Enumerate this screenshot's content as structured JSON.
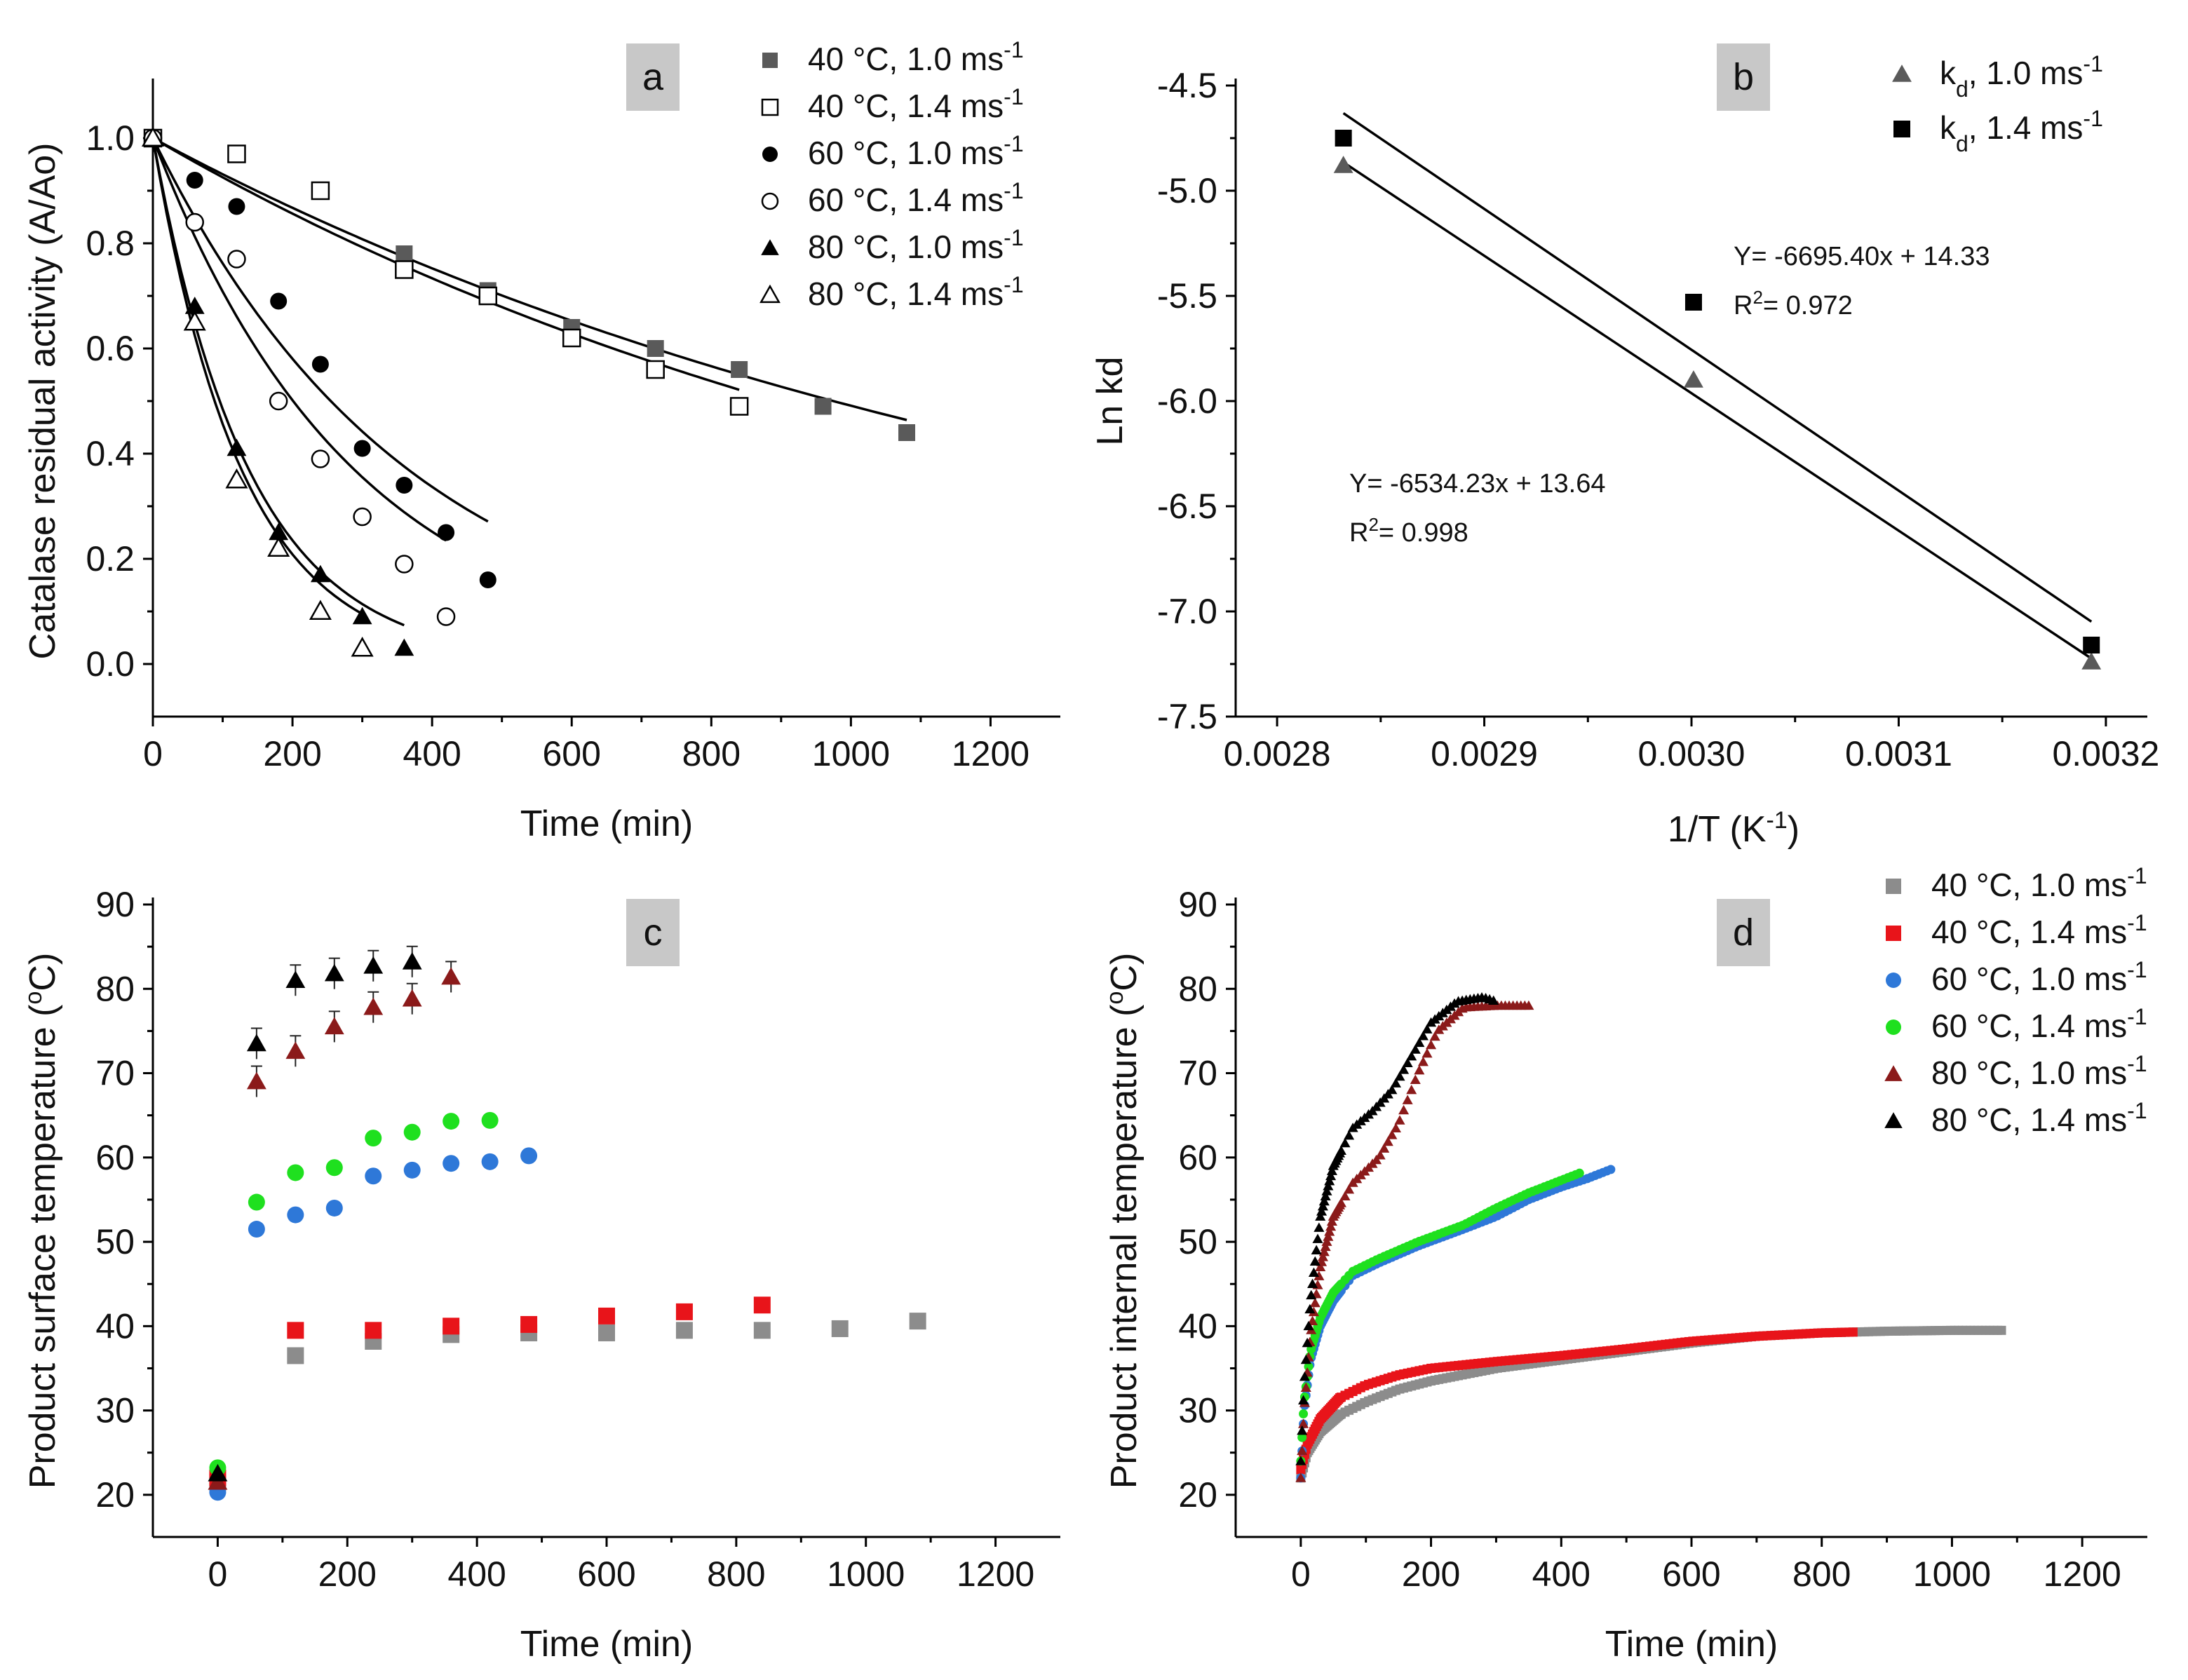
{
  "colors": {
    "gray_marker": "#5a5a5a",
    "gray_light": "#8c8c8c",
    "red": "#e8141a",
    "blue": "#2e78d8",
    "green": "#1fe01f",
    "dark_red": "#8b1a1a",
    "black": "#000000",
    "label_box": "#c8c8c8"
  },
  "chart_data": [
    {
      "panel": "a",
      "type": "scatter",
      "panel_label": "a",
      "xlabel": "Time (min)",
      "ylabel": "Catalase residual activity (A/Ao)",
      "xlim": [
        0,
        1300
      ],
      "ylim": [
        -0.1,
        1.1
      ],
      "xticks": [
        "0",
        "200",
        "400",
        "600",
        "800",
        "1000",
        "1200"
      ],
      "yticks": [
        "0.0",
        "0.2",
        "0.4",
        "0.6",
        "0.8",
        "1.0"
      ],
      "legend": {
        "position": "top-right",
        "entries": [
          {
            "label": "40 °C, 1.0 ms",
            "sup": "-1",
            "marker": "square-filled-gray"
          },
          {
            "label": "40 °C, 1.4 ms",
            "sup": "-1",
            "marker": "square-open"
          },
          {
            "label": "60 °C, 1.0 ms",
            "sup": "-1",
            "marker": "circle-filled"
          },
          {
            "label": "60 °C, 1.4 ms",
            "sup": "-1",
            "marker": "circle-open"
          },
          {
            "label": "80 °C, 1.0 ms",
            "sup": "-1",
            "marker": "triangle-filled"
          },
          {
            "label": "80 °C, 1.4 ms",
            "sup": "-1",
            "marker": "triangle-open"
          }
        ]
      },
      "series": [
        {
          "name": "40 °C, 1.0 ms-1",
          "marker": "square-filled-gray",
          "x": [
            0,
            360,
            480,
            600,
            720,
            840,
            960,
            1080
          ],
          "y": [
            1.0,
            0.78,
            0.71,
            0.64,
            0.6,
            0.56,
            0.49,
            0.44
          ]
        },
        {
          "name": "40 °C, 1.4 ms-1",
          "marker": "square-open",
          "x": [
            0,
            120,
            240,
            360,
            480,
            600,
            720,
            840
          ],
          "y": [
            1.0,
            0.97,
            0.9,
            0.75,
            0.7,
            0.62,
            0.56,
            0.49
          ]
        },
        {
          "name": "60 °C, 1.0 ms-1",
          "marker": "circle-filled",
          "x": [
            0,
            60,
            120,
            180,
            240,
            300,
            360,
            420,
            480
          ],
          "y": [
            1.0,
            0.92,
            0.87,
            0.69,
            0.57,
            0.41,
            0.34,
            0.25,
            0.16
          ]
        },
        {
          "name": "60 °C, 1.4 ms-1",
          "marker": "circle-open",
          "x": [
            0,
            60,
            120,
            180,
            240,
            300,
            360,
            420
          ],
          "y": [
            1.0,
            0.84,
            0.77,
            0.5,
            0.39,
            0.28,
            0.19,
            0.09
          ]
        },
        {
          "name": "80 °C, 1.0 ms-1",
          "marker": "triangle-filled",
          "x": [
            0,
            60,
            120,
            180,
            240,
            300,
            360
          ],
          "y": [
            1.0,
            0.68,
            0.41,
            0.25,
            0.17,
            0.09,
            0.03
          ]
        },
        {
          "name": "80 °C, 1.4 ms-1",
          "marker": "triangle-open",
          "x": [
            0,
            60,
            120,
            180,
            240,
            300
          ],
          "y": [
            1.0,
            0.65,
            0.35,
            0.22,
            0.1,
            0.03
          ]
        }
      ],
      "fits": [
        {
          "k": 0.000711,
          "xmax": 1080
        },
        {
          "k": 0.000775,
          "xmax": 840
        },
        {
          "k": 0.00272,
          "xmax": 480
        },
        {
          "k": 0.00345,
          "xmax": 420
        },
        {
          "k": 0.00724,
          "xmax": 360
        },
        {
          "k": 0.00784,
          "xmax": 300
        }
      ]
    },
    {
      "panel": "b",
      "type": "scatter",
      "panel_label": "b",
      "xlabel": "1/T (K",
      "xlabel_sup": "-1",
      "xlabel_end": ")",
      "ylabel": "Ln kd",
      "xlim": [
        0.00278,
        0.00322
      ],
      "ylim": [
        -7.5,
        -4.5
      ],
      "xticks": [
        "0.0028",
        "0.0029",
        "0.0030",
        "0.0031",
        "0.0032"
      ],
      "yticks": [
        "-4.5",
        "-5.0",
        "-5.5",
        "-6.0",
        "-6.5",
        "-7.0",
        "-7.5"
      ],
      "legend": {
        "position": "top-right",
        "entries": [
          {
            "label": "k",
            "sub": "d",
            "rest": ", 1.0 ms",
            "sup": "-1",
            "marker": "triangle-filled-gray"
          },
          {
            "label": "k",
            "sub": "d",
            "rest": ", 1.4 ms",
            "sup": "-1",
            "marker": "square-filled"
          }
        ]
      },
      "series": [
        {
          "name": "kd, 1.0 ms-1",
          "marker": "triangle-filled-gray",
          "x": [
            0.002832,
            0.003001,
            0.003193
          ],
          "y": [
            -4.88,
            -5.9,
            -7.24
          ]
        },
        {
          "name": "kd, 1.4 ms-1",
          "marker": "square-filled",
          "x": [
            0.002832,
            0.003001,
            0.003193
          ],
          "y": [
            -4.75,
            -5.53,
            -7.16
          ]
        }
      ],
      "fits": [
        {
          "slope": -6695.4,
          "intercept": 14.33,
          "x0": 0.002832,
          "x1": 0.003193
        },
        {
          "slope": -6534.23,
          "intercept": 13.64,
          "x0": 0.002832,
          "x1": 0.003193
        }
      ],
      "annotations": [
        {
          "eq": "Y= -6695.40x + 14.33",
          "r2_label": "R",
          "r2_sup": "2",
          "r2_value": "=  0.972"
        },
        {
          "eq": "Y= -6534.23x + 13.64",
          "r2_label": "R",
          "r2_sup": "2",
          "r2_value": "=  0.998"
        }
      ]
    },
    {
      "panel": "c",
      "type": "scatter",
      "panel_label": "c",
      "xlabel": "Time (min)",
      "ylabel": "Product surface temperature (",
      "ylabel_sup": "o",
      "ylabel_end": "C)",
      "xlim": [
        -100,
        1300
      ],
      "ylim": [
        15,
        90
      ],
      "xticks": [
        "0",
        "200",
        "400",
        "600",
        "800",
        "1000",
        "1200"
      ],
      "yticks": [
        "20",
        "30",
        "40",
        "50",
        "60",
        "70",
        "80",
        "90"
      ],
      "series": [
        {
          "name": "40 °C, 1.0 ms-1",
          "marker": "square",
          "color": "gray_light",
          "x": [
            0,
            120,
            240,
            360,
            480,
            600,
            720,
            840,
            960,
            1080
          ],
          "y": [
            21.5,
            36.5,
            38.2,
            39.0,
            39.2,
            39.2,
            39.5,
            39.5,
            39.7,
            40.6
          ]
        },
        {
          "name": "40 °C, 1.4 ms-1",
          "marker": "square",
          "color": "red",
          "x": [
            0,
            120,
            240,
            360,
            480,
            600,
            720,
            840
          ],
          "y": [
            22.0,
            39.5,
            39.5,
            40.0,
            40.2,
            41.2,
            41.7,
            42.5
          ]
        },
        {
          "name": "60 °C, 1.0 ms-1",
          "marker": "circle",
          "color": "blue",
          "x": [
            0,
            60,
            120,
            180,
            240,
            300,
            360,
            420,
            480
          ],
          "y": [
            20.3,
            51.5,
            53.2,
            54.0,
            57.8,
            58.5,
            59.3,
            59.5,
            60.2
          ]
        },
        {
          "name": "60 °C, 1.4 ms-1",
          "marker": "circle",
          "color": "green",
          "x": [
            0,
            60,
            120,
            180,
            240,
            300,
            360,
            420
          ],
          "y": [
            23.2,
            54.7,
            58.2,
            58.8,
            62.3,
            63.0,
            64.3,
            64.4
          ]
        },
        {
          "name": "80 °C, 1.0 ms-1",
          "marker": "triangle",
          "color": "dark_red",
          "x": [
            0,
            60,
            120,
            180,
            240,
            300,
            360
          ],
          "y": [
            21.5,
            69.0,
            72.6,
            75.5,
            77.8,
            78.8,
            81.4
          ]
        },
        {
          "name": "80 °C, 1.4 ms-1",
          "marker": "triangle",
          "color": "black",
          "x": [
            0,
            60,
            120,
            180,
            240,
            300
          ],
          "y": [
            22.5,
            73.5,
            81.0,
            81.8,
            82.7,
            83.2
          ]
        }
      ]
    },
    {
      "panel": "d",
      "type": "scatter",
      "panel_label": "d",
      "xlabel": "Time (min)",
      "ylabel": "Product internal temperature (",
      "ylabel_sup": "o",
      "ylabel_end": "C)",
      "xlim": [
        -100,
        1300
      ],
      "ylim": [
        15,
        90
      ],
      "xticks": [
        "0",
        "200",
        "400",
        "600",
        "800",
        "1000",
        "1200"
      ],
      "yticks": [
        "20",
        "30",
        "40",
        "50",
        "60",
        "70",
        "80",
        "90"
      ],
      "legend": {
        "position": "top-right",
        "entries": [
          {
            "label": "40 °C, 1.0 ms",
            "sup": "-1",
            "marker": "square",
            "color": "gray_light"
          },
          {
            "label": "40 °C, 1.4 ms",
            "sup": "-1",
            "marker": "square",
            "color": "red"
          },
          {
            "label": "60 °C, 1.0 ms",
            "sup": "-1",
            "marker": "circle",
            "color": "blue"
          },
          {
            "label": "60 °C, 1.4 ms",
            "sup": "-1",
            "marker": "circle",
            "color": "green"
          },
          {
            "label": "80 °C, 1.0 ms",
            "sup": "-1",
            "marker": "triangle",
            "color": "dark_red"
          },
          {
            "label": "80 °C, 1.4 ms",
            "sup": "-1",
            "marker": "triangle",
            "color": "black"
          }
        ]
      },
      "series": [
        {
          "name": "40 °C, 1.0 ms-1",
          "marker": "square",
          "color": "gray_light",
          "points": [
            [
              0,
              22
            ],
            [
              10,
              25
            ],
            [
              30,
              27.5
            ],
            [
              60,
              29.5
            ],
            [
              100,
              31
            ],
            [
              150,
              32.5
            ],
            [
              200,
              33.5
            ],
            [
              300,
              35
            ],
            [
              400,
              36
            ],
            [
              500,
              37
            ],
            [
              600,
              38
            ],
            [
              700,
              38.8
            ],
            [
              800,
              39.2
            ],
            [
              900,
              39.4
            ],
            [
              1000,
              39.5
            ],
            [
              1080,
              39.5
            ]
          ]
        },
        {
          "name": "40 °C, 1.4 ms-1",
          "marker": "square",
          "color": "red",
          "points": [
            [
              0,
              23
            ],
            [
              10,
              26
            ],
            [
              30,
              29
            ],
            [
              60,
              31.5
            ],
            [
              100,
              33
            ],
            [
              150,
              34.2
            ],
            [
              200,
              35
            ],
            [
              300,
              35.8
            ],
            [
              400,
              36.5
            ],
            [
              500,
              37.3
            ],
            [
              600,
              38.2
            ],
            [
              700,
              38.8
            ],
            [
              800,
              39.2
            ],
            [
              850,
              39.3
            ]
          ]
        },
        {
          "name": "60 °C, 1.0 ms-1",
          "marker": "circle",
          "color": "blue",
          "points": [
            [
              0,
              22
            ],
            [
              5,
              30
            ],
            [
              15,
              36
            ],
            [
              30,
              40
            ],
            [
              50,
              43
            ],
            [
              80,
              46
            ],
            [
              120,
              47.5
            ],
            [
              180,
              49.5
            ],
            [
              250,
              51.5
            ],
            [
              300,
              53
            ],
            [
              350,
              55
            ],
            [
              400,
              56.5
            ],
            [
              440,
              57.5
            ],
            [
              480,
              58.7
            ]
          ]
        },
        {
          "name": "60 °C, 1.4 ms-1",
          "marker": "circle",
          "color": "green",
          "points": [
            [
              0,
              24
            ],
            [
              5,
              31
            ],
            [
              15,
              37
            ],
            [
              30,
              41
            ],
            [
              50,
              44
            ],
            [
              80,
              46.5
            ],
            [
              120,
              48
            ],
            [
              180,
              50
            ],
            [
              250,
              52
            ],
            [
              300,
              54
            ],
            [
              350,
              55.8
            ],
            [
              400,
              57.3
            ],
            [
              430,
              58.2
            ]
          ]
        },
        {
          "name": "80 °C, 1.0 ms-1",
          "marker": "triangle",
          "color": "dark_red",
          "points": [
            [
              0,
              22
            ],
            [
              5,
              30
            ],
            [
              15,
              39
            ],
            [
              30,
              47
            ],
            [
              50,
              53
            ],
            [
              80,
              57
            ],
            [
              120,
              60
            ],
            [
              150,
              64
            ],
            [
              180,
              70
            ],
            [
              210,
              75
            ],
            [
              250,
              77.8
            ],
            [
              300,
              78
            ],
            [
              350,
              78
            ]
          ]
        },
        {
          "name": "80 °C, 1.4 ms-1",
          "marker": "triangle",
          "color": "black",
          "points": [
            [
              0,
              24
            ],
            [
              5,
              33
            ],
            [
              15,
              43
            ],
            [
              30,
              53
            ],
            [
              50,
              59
            ],
            [
              80,
              63.5
            ],
            [
              110,
              65.5
            ],
            [
              140,
              68
            ],
            [
              170,
              72
            ],
            [
              200,
              76
            ],
            [
              240,
              78.5
            ],
            [
              280,
              79
            ],
            [
              300,
              78.5
            ]
          ]
        }
      ]
    }
  ]
}
